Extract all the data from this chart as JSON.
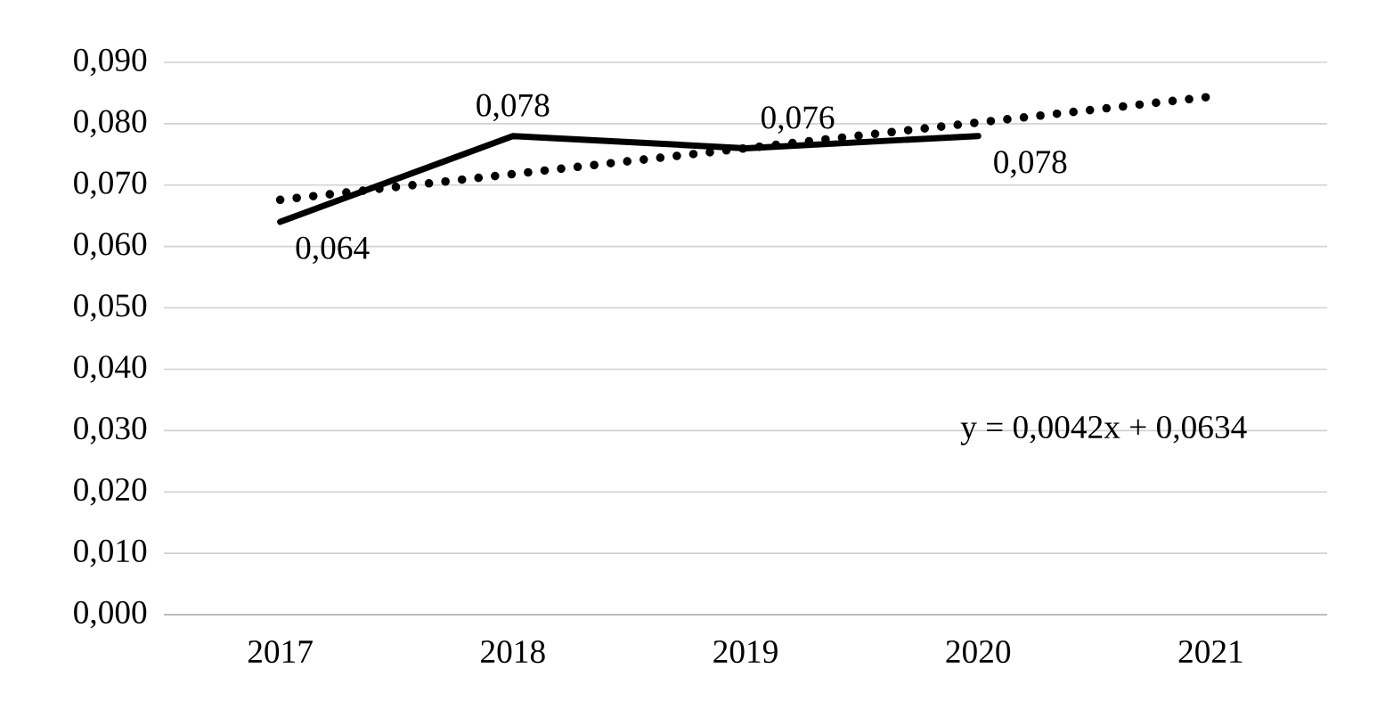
{
  "chart_data": {
    "type": "line",
    "categories": [
      "2017",
      "2018",
      "2019",
      "2020",
      "2021"
    ],
    "series": [
      {
        "color": "#000000",
        "line_style": "solid",
        "values": [
          0.064,
          0.078,
          0.076,
          0.078,
          null
        ],
        "value_labels": [
          "0,064",
          "0,078",
          "0,076",
          "0,078",
          null
        ]
      },
      {
        "color": "#000000",
        "line_style": "dotted",
        "values": [
          0.0676,
          0.0718,
          0.076,
          0.0802,
          0.0844
        ]
      }
    ],
    "ylim": [
      0,
      0.09
    ],
    "yticks": [
      {
        "value": 0,
        "label": "0,000"
      },
      {
        "value": 0.01,
        "label": "0,010"
      },
      {
        "value": 0.02,
        "label": "0,020"
      },
      {
        "value": 0.03,
        "label": "0,030"
      },
      {
        "value": 0.04,
        "label": "0,040"
      },
      {
        "value": 0.05,
        "label": "0,050"
      },
      {
        "value": 0.06,
        "label": "0,060"
      },
      {
        "value": 0.07,
        "label": "0,070"
      },
      {
        "value": 0.08,
        "label": "0,080"
      },
      {
        "value": 0.09,
        "label": "0,090"
      }
    ],
    "grid": "y",
    "annotations": [
      "y = 0,0042x + 0,0634"
    ]
  }
}
